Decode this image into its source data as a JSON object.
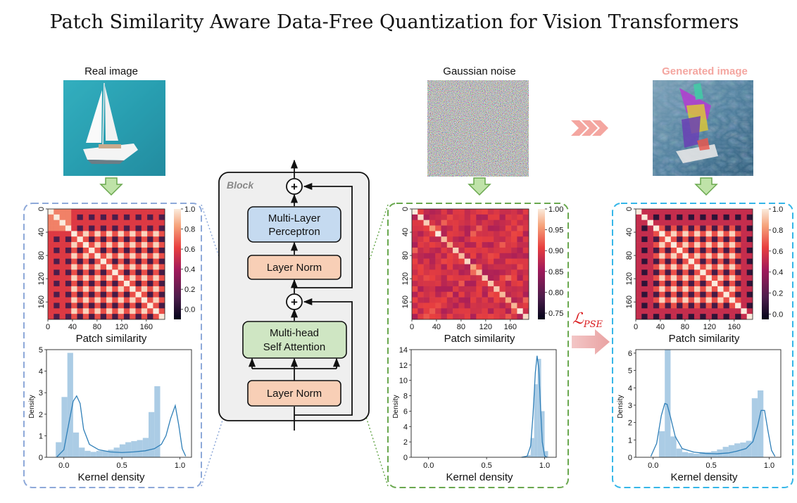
{
  "title": "Patch Similarity Aware Data-Free Quantization for Vision Transformers",
  "colors": {
    "blue_border": "#8ea9d9",
    "green_border": "#6aa84f",
    "cyan_border": "#35b6e8",
    "hist": "#9cc3e1",
    "kde": "#2f7fb8",
    "red": "#e06666",
    "salmon": "#f4a6a0"
  },
  "panels": {
    "real": {
      "caption": "Real image",
      "image_desc": "sailing-boat-photo",
      "heatmap_xlabel": "Patch similarity",
      "kde_xlabel": "Kernel density",
      "ylabel": "Density"
    },
    "noise": {
      "caption": "Gaussian noise",
      "image_desc": "gaussian-noise-image",
      "heatmap_xlabel": "Patch similarity",
      "kde_xlabel": "Kernel density",
      "ylabel": "Density"
    },
    "generated": {
      "caption": "Generated image",
      "image_desc": "generated-image",
      "heatmap_xlabel": "Patch similarity",
      "kde_xlabel": "Kernel density",
      "ylabel": "Density"
    }
  },
  "block": {
    "label": "Block",
    "mlp": [
      "Multi-Layer",
      "Perceptron"
    ],
    "norm_top": "Layer Norm",
    "attention": [
      "Multi-head",
      "Self Attention"
    ],
    "norm_bottom": "Layer Norm",
    "plus": "+"
  },
  "loss": {
    "symbol": "ℒ",
    "subscript": "PSE"
  },
  "chart_data": [
    {
      "type": "heatmap",
      "panel": "real",
      "xlabel": "Patch similarity",
      "x_ticks": [
        "0",
        "40",
        "80",
        "120",
        "160"
      ],
      "y_ticks": [
        "0",
        "40",
        "80",
        "120",
        "160"
      ],
      "colorbar_ticks": [
        "1.0",
        "0.8",
        "0.6",
        "0.4",
        "0.2",
        "0.0"
      ],
      "colorbar_range": [
        -0.1,
        1.0
      ]
    },
    {
      "type": "bar",
      "panel": "real",
      "xlabel": "Kernel density",
      "ylabel": "Density",
      "x_ticks": [
        "0.0",
        "0.5",
        "1.0"
      ],
      "y_ticks": [
        "0",
        "1",
        "2",
        "3",
        "4",
        "5"
      ],
      "xlim": [
        -0.15,
        1.1
      ],
      "ylim": [
        0,
        5
      ],
      "bins_start": -0.07,
      "bin_width": 0.05,
      "values": [
        0.7,
        2.8,
        4.85,
        1.15,
        0.45,
        0.3,
        0.25,
        0.3,
        0.3,
        0.35,
        0.45,
        0.6,
        0.7,
        0.75,
        0.8,
        0.9,
        2.1,
        3.3
      ],
      "kde_x": [
        -0.06,
        0.0,
        0.04,
        0.08,
        0.11,
        0.14,
        0.17,
        0.22,
        0.3,
        0.4,
        0.5,
        0.6,
        0.7,
        0.78,
        0.84,
        0.88,
        0.92,
        0.96,
        0.99,
        1.02,
        1.05
      ],
      "kde_y": [
        0.02,
        0.35,
        1.5,
        2.6,
        2.85,
        2.5,
        1.3,
        0.6,
        0.35,
        0.25,
        0.22,
        0.25,
        0.3,
        0.4,
        0.6,
        1.0,
        1.8,
        2.4,
        1.5,
        0.4,
        0.05
      ]
    },
    {
      "type": "heatmap",
      "panel": "noise",
      "xlabel": "Patch similarity",
      "x_ticks": [
        "0",
        "40",
        "80",
        "120",
        "160"
      ],
      "y_ticks": [
        "0",
        "40",
        "80",
        "120",
        "160"
      ],
      "colorbar_ticks": [
        "1.00",
        "0.95",
        "0.90",
        "0.85",
        "0.80",
        "0.75"
      ],
      "colorbar_range": [
        0.735,
        1.0
      ]
    },
    {
      "type": "bar",
      "panel": "noise",
      "xlabel": "Kernel density",
      "ylabel": "Density",
      "x_ticks": [
        "0.0",
        "0.5",
        "1.0"
      ],
      "y_ticks": [
        "0",
        "2",
        "4",
        "6",
        "8",
        "10",
        "12",
        "14"
      ],
      "xlim": [
        -0.15,
        1.1
      ],
      "ylim": [
        0,
        14
      ],
      "bins_start": 0.85,
      "bin_width": 0.03,
      "values": [
        0.3,
        2.5,
        9.5,
        12.8,
        6.0,
        0.8
      ],
      "kde_x": [
        0.8,
        0.85,
        0.88,
        0.9,
        0.92,
        0.935,
        0.95,
        0.965,
        0.98,
        1.0,
        1.02
      ],
      "kde_y": [
        0,
        0.15,
        1.5,
        5.5,
        11.0,
        13.2,
        11.5,
        6.5,
        2.0,
        0.2,
        0
      ]
    },
    {
      "type": "heatmap",
      "panel": "generated",
      "xlabel": "Patch similarity",
      "x_ticks": [
        "0",
        "40",
        "80",
        "120",
        "160"
      ],
      "y_ticks": [
        "0",
        "40",
        "80",
        "120",
        "160"
      ],
      "colorbar_ticks": [
        "1.0",
        "0.8",
        "0.6",
        "0.4",
        "0.2",
        "0.0"
      ],
      "colorbar_range": [
        -0.05,
        1.0
      ]
    },
    {
      "type": "bar",
      "panel": "generated",
      "xlabel": "Kernel density",
      "ylabel": "Density",
      "x_ticks": [
        "0.0",
        "0.5",
        "1.0"
      ],
      "y_ticks": [
        "0",
        "1",
        "2",
        "3",
        "4",
        "5",
        "6"
      ],
      "xlim": [
        -0.15,
        1.1
      ],
      "ylim": [
        0,
        6.2
      ],
      "bins_start": 0.05,
      "bin_width": 0.05,
      "values": [
        1.5,
        6.2,
        1.2,
        0.5,
        0.3,
        0.25,
        0.2,
        0.3,
        0.3,
        0.35,
        0.45,
        0.6,
        0.7,
        0.8,
        0.85,
        0.95,
        3.4,
        3.85
      ],
      "kde_x": [
        -0.02,
        0.03,
        0.07,
        0.1,
        0.12,
        0.15,
        0.19,
        0.25,
        0.35,
        0.45,
        0.55,
        0.65,
        0.72,
        0.8,
        0.86,
        0.9,
        0.93,
        0.96,
        0.99,
        1.02,
        1.05
      ],
      "kde_y": [
        0.05,
        0.8,
        2.4,
        3.1,
        3.05,
        2.3,
        1.2,
        0.5,
        0.3,
        0.22,
        0.2,
        0.25,
        0.35,
        0.5,
        0.9,
        1.8,
        2.7,
        2.7,
        1.5,
        0.4,
        0.05
      ]
    }
  ]
}
